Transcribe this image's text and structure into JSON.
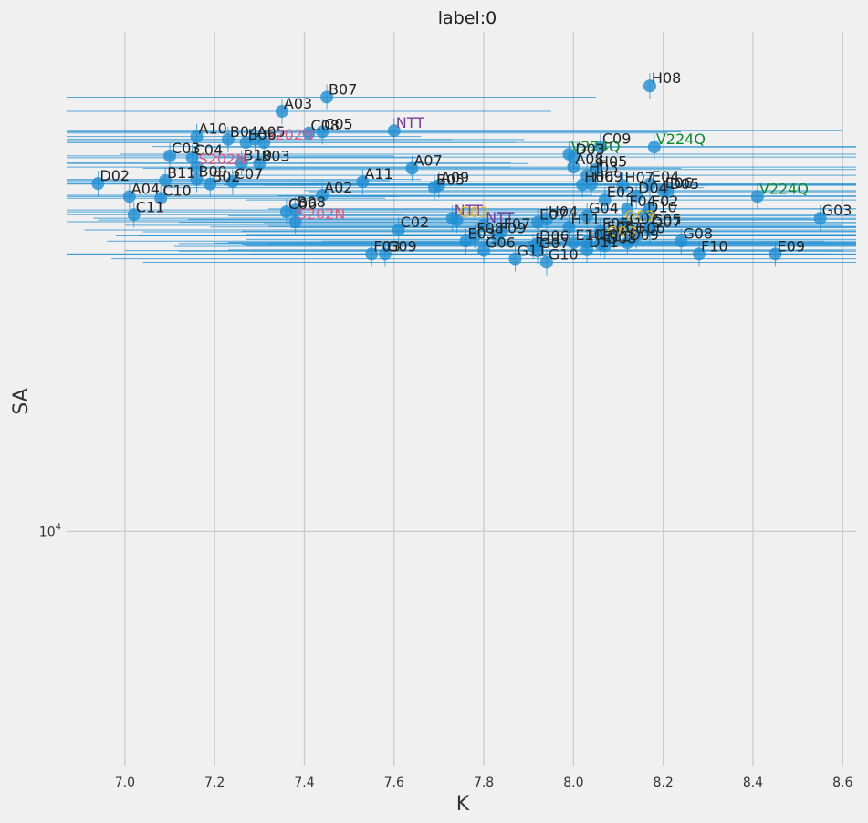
{
  "chart_data": {
    "type": "scatter",
    "title": "label:0",
    "xlabel": "K",
    "ylabel": "SA",
    "xlim": [
      6.87,
      8.63
    ],
    "ylim_log10": [
      3.6,
      4.85
    ],
    "y_scale": "log",
    "xticks": [
      7.0,
      7.2,
      7.4,
      7.6,
      7.8,
      8.0,
      8.2,
      8.4,
      8.6
    ],
    "xtick_labels": [
      "7.0",
      "7.2",
      "7.4",
      "7.6",
      "7.8",
      "8.0",
      "8.2",
      "8.4",
      "8.6"
    ],
    "yticks_log10": [
      4.0
    ],
    "ytick_labels": [
      "10^4"
    ],
    "grid": true,
    "colors": {
      "marker": "#1f8fd3",
      "errorbar": "#1f8fd3",
      "label_default": "#222222",
      "NTT": "#7d3c98",
      "S202N": "#e75480",
      "V224Q": "#0a8a2a",
      "G03_highlight": "#e6b422"
    },
    "points": [
      {
        "label": "H08",
        "x": 8.17,
        "log10y": 4.758,
        "xerr": 0.0,
        "color": "label_default"
      },
      {
        "label": "B07",
        "x": 7.45,
        "log10y": 4.739,
        "xerr": 0.6,
        "color": "label_default"
      },
      {
        "label": "A03",
        "x": 7.35,
        "log10y": 4.715,
        "xerr": 0.6,
        "color": "label_default"
      },
      {
        "label": "NTT",
        "x": 7.6,
        "log10y": 4.682,
        "xerr": 1.0,
        "color": "NTT"
      },
      {
        "label": "C05",
        "x": 7.44,
        "log10y": 4.68,
        "xerr": 0.8,
        "color": "label_default"
      },
      {
        "label": "C08",
        "x": 7.41,
        "log10y": 4.678,
        "xerr": 0.8,
        "color": "label_default"
      },
      {
        "label": "A10",
        "x": 7.16,
        "log10y": 4.672,
        "xerr": 0.5,
        "color": "label_default"
      },
      {
        "label": "B04",
        "x": 7.23,
        "log10y": 4.667,
        "xerr": 0.5,
        "color": "label_default"
      },
      {
        "label": "A05",
        "x": 7.29,
        "log10y": 4.667,
        "xerr": 0.6,
        "color": "label_default"
      },
      {
        "label": "S202N",
        "x": 7.31,
        "log10y": 4.662,
        "xerr": 0.7,
        "color": "S202N"
      },
      {
        "label": "B06",
        "x": 7.27,
        "log10y": 4.662,
        "xerr": 0.6,
        "color": "label_default"
      },
      {
        "label": "C09",
        "x": 8.06,
        "log10y": 4.655,
        "xerr": 1.0,
        "color": "label_default"
      },
      {
        "label": "V224Q",
        "x": 8.18,
        "log10y": 4.654,
        "xerr": 1.0,
        "color": "V224Q"
      },
      {
        "label": "V224Q",
        "x": 7.99,
        "log10y": 4.642,
        "xerr": 1.0,
        "color": "V224Q"
      },
      {
        "label": "D03",
        "x": 8.0,
        "log10y": 4.637,
        "xerr": 0.8,
        "color": "label_default"
      },
      {
        "label": "C03",
        "x": 7.1,
        "log10y": 4.639,
        "xerr": 0.5,
        "color": "label_default"
      },
      {
        "label": "C04",
        "x": 7.15,
        "log10y": 4.636,
        "xerr": 0.5,
        "color": "label_default"
      },
      {
        "label": "B10",
        "x": 7.26,
        "log10y": 4.627,
        "xerr": 0.6,
        "color": "label_default"
      },
      {
        "label": "B03",
        "x": 7.3,
        "log10y": 4.626,
        "xerr": 0.6,
        "color": "label_default"
      },
      {
        "label": "S202N",
        "x": 7.16,
        "log10y": 4.62,
        "xerr": 0.7,
        "color": "S202N"
      },
      {
        "label": "A07",
        "x": 7.64,
        "log10y": 4.618,
        "xerr": 0.6,
        "color": "label_default"
      },
      {
        "label": "A08",
        "x": 8.0,
        "log10y": 4.62,
        "xerr": 0.9,
        "color": "label_default"
      },
      {
        "label": "H05",
        "x": 8.05,
        "log10y": 4.616,
        "xerr": 0.8,
        "color": "label_default"
      },
      {
        "label": "H03",
        "x": 8.03,
        "log10y": 4.606,
        "xerr": 0.8,
        "color": "label_default"
      },
      {
        "label": "B09",
        "x": 7.16,
        "log10y": 4.599,
        "xerr": 0.5,
        "color": "label_default"
      },
      {
        "label": "B11",
        "x": 7.09,
        "log10y": 4.597,
        "xerr": 0.5,
        "color": "label_default"
      },
      {
        "label": "C07",
        "x": 7.24,
        "log10y": 4.595,
        "xerr": 0.5,
        "color": "label_default"
      },
      {
        "label": "A11",
        "x": 7.53,
        "log10y": 4.595,
        "xerr": 0.6,
        "color": "label_default"
      },
      {
        "label": "D02",
        "x": 6.94,
        "log10y": 4.592,
        "xerr": 0.6,
        "color": "label_default"
      },
      {
        "label": "B02",
        "x": 7.19,
        "log10y": 4.591,
        "xerr": 0.5,
        "color": "label_default"
      },
      {
        "label": "A09",
        "x": 7.7,
        "log10y": 4.589,
        "xerr": 0.6,
        "color": "label_default"
      },
      {
        "label": "H06",
        "x": 8.02,
        "log10y": 4.59,
        "xerr": 0.8,
        "color": "label_default"
      },
      {
        "label": "H09",
        "x": 8.04,
        "log10y": 4.591,
        "xerr": 0.8,
        "color": "label_default"
      },
      {
        "label": "H07",
        "x": 8.11,
        "log10y": 4.589,
        "xerr": 0.8,
        "color": "label_default"
      },
      {
        "label": "E04",
        "x": 8.17,
        "log10y": 4.591,
        "xerr": 0.8,
        "color": "label_default"
      },
      {
        "label": "B05",
        "x": 7.69,
        "log10y": 4.585,
        "xerr": 0.6,
        "color": "label_default"
      },
      {
        "label": "E06",
        "x": 8.2,
        "log10y": 4.58,
        "xerr": 0.8,
        "color": "label_default"
      },
      {
        "label": "D05",
        "x": 8.21,
        "log10y": 4.578,
        "xerr": 0.8,
        "color": "label_default"
      },
      {
        "label": "A02",
        "x": 7.44,
        "log10y": 4.572,
        "xerr": 0.6,
        "color": "label_default"
      },
      {
        "label": "A04",
        "x": 7.01,
        "log10y": 4.57,
        "xerr": 0.6,
        "color": "label_default"
      },
      {
        "label": "C10",
        "x": 7.08,
        "log10y": 4.567,
        "xerr": 0.5,
        "color": "label_default"
      },
      {
        "label": "D04",
        "x": 8.14,
        "log10y": 4.571,
        "xerr": 0.8,
        "color": "label_default"
      },
      {
        "label": "V224Q",
        "x": 8.41,
        "log10y": 4.57,
        "xerr": 1.0,
        "color": "V224Q"
      },
      {
        "label": "E02",
        "x": 8.07,
        "log10y": 4.564,
        "xerr": 0.8,
        "color": "label_default"
      },
      {
        "label": "F04",
        "x": 8.12,
        "log10y": 4.549,
        "xerr": 0.8,
        "color": "label_default"
      },
      {
        "label": "F02",
        "x": 8.17,
        "log10y": 4.549,
        "xerr": 0.8,
        "color": "label_default"
      },
      {
        "label": "B08",
        "x": 7.38,
        "log10y": 4.547,
        "xerr": 0.7,
        "color": "label_default"
      },
      {
        "label": "C06",
        "x": 7.36,
        "log10y": 4.544,
        "xerr": 0.7,
        "color": "label_default"
      },
      {
        "label": "D10",
        "x": 8.16,
        "log10y": 4.539,
        "xerr": 0.8,
        "color": "label_default"
      },
      {
        "label": "C11",
        "x": 7.02,
        "log10y": 4.539,
        "xerr": 0.6,
        "color": "label_default"
      },
      {
        "label": "G04",
        "x": 8.03,
        "log10y": 4.537,
        "xerr": 0.8,
        "color": "label_default"
      },
      {
        "label": "NTT",
        "x": 7.73,
        "log10y": 4.533,
        "xerr": 0.8,
        "color": "NTT"
      },
      {
        "label": "G03",
        "x": 7.74,
        "log10y": 4.53,
        "xerr": 0.8,
        "color": "G03_highlight"
      },
      {
        "label": "H04",
        "x": 7.94,
        "log10y": 4.531,
        "xerr": 0.8,
        "color": "label_default"
      },
      {
        "label": "G03",
        "x": 8.55,
        "log10y": 4.533,
        "xerr": 0.9,
        "color": "label_default"
      },
      {
        "label": "S202N",
        "x": 7.38,
        "log10y": 4.527,
        "xerr": 0.7,
        "color": "S202N"
      },
      {
        "label": "E07",
        "x": 7.92,
        "log10y": 4.526,
        "xerr": 0.8,
        "color": "label_default"
      },
      {
        "label": "G03",
        "x": 8.11,
        "log10y": 4.524,
        "xerr": 0.8,
        "color": "G03_highlight"
      },
      {
        "label": "NTT",
        "x": 7.8,
        "log10y": 4.521,
        "xerr": 0.8,
        "color": "NTT"
      },
      {
        "label": "G02",
        "x": 8.12,
        "log10y": 4.519,
        "xerr": 0.8,
        "color": "label_default"
      },
      {
        "label": "G05",
        "x": 8.17,
        "log10y": 4.517,
        "xerr": 0.8,
        "color": "label_default"
      },
      {
        "label": "H11",
        "x": 7.99,
        "log10y": 4.518,
        "xerr": 0.8,
        "color": "label_default"
      },
      {
        "label": "C02",
        "x": 7.61,
        "log10y": 4.513,
        "xerr": 0.7,
        "color": "label_default"
      },
      {
        "label": "F05",
        "x": 8.06,
        "log10y": 4.511,
        "xerr": 0.8,
        "color": "label_default"
      },
      {
        "label": "D07",
        "x": 8.17,
        "log10y": 4.513,
        "xerr": 0.8,
        "color": "label_default"
      },
      {
        "label": "F07",
        "x": 7.84,
        "log10y": 4.51,
        "xerr": 0.8,
        "color": "label_default"
      },
      {
        "label": "E05",
        "x": 8.07,
        "log10y": 4.505,
        "xerr": 0.8,
        "color": "label_default"
      },
      {
        "label": "F06",
        "x": 8.14,
        "log10y": 4.503,
        "xerr": 0.8,
        "color": "label_default"
      },
      {
        "label": "C06",
        "x": 8.09,
        "log10y": 4.503,
        "xerr": 0.8,
        "color": "label_default"
      },
      {
        "label": "F08",
        "x": 7.78,
        "log10y": 4.503,
        "xerr": 0.8,
        "color": "label_default"
      },
      {
        "label": "F09",
        "x": 7.83,
        "log10y": 4.503,
        "xerr": 0.8,
        "color": "label_default"
      },
      {
        "label": "G03",
        "x": 8.07,
        "log10y": 4.497,
        "xerr": 0.8,
        "color": "G03_highlight"
      },
      {
        "label": "G08",
        "x": 8.24,
        "log10y": 4.494,
        "xerr": 0.8,
        "color": "label_default"
      },
      {
        "label": "E03",
        "x": 7.76,
        "log10y": 4.494,
        "xerr": 0.8,
        "color": "label_default"
      },
      {
        "label": "H10",
        "x": 8.03,
        "log10y": 4.492,
        "xerr": 0.8,
        "color": "label_default"
      },
      {
        "label": "E10",
        "x": 8.0,
        "log10y": 4.491,
        "xerr": 0.8,
        "color": "label_default"
      },
      {
        "label": "D06",
        "x": 7.92,
        "log10y": 4.49,
        "xerr": 0.8,
        "color": "label_default"
      },
      {
        "label": "D09",
        "x": 8.12,
        "log10y": 4.491,
        "xerr": 0.8,
        "color": "label_default"
      },
      {
        "label": "E11",
        "x": 8.06,
        "log10y": 4.489,
        "xerr": 0.8,
        "color": "label_default"
      },
      {
        "label": "D08",
        "x": 8.07,
        "log10y": 4.486,
        "xerr": 0.8,
        "color": "label_default"
      },
      {
        "label": "F11",
        "x": 7.91,
        "log10y": 4.485,
        "xerr": 0.8,
        "color": "label_default"
      },
      {
        "label": "D11",
        "x": 8.03,
        "log10y": 4.479,
        "xerr": 0.8,
        "color": "label_default"
      },
      {
        "label": "G06",
        "x": 7.8,
        "log10y": 4.478,
        "xerr": 0.8,
        "color": "label_default"
      },
      {
        "label": "G07",
        "x": 7.92,
        "log10y": 4.477,
        "xerr": 0.8,
        "color": "label_default"
      },
      {
        "label": "F03",
        "x": 7.55,
        "log10y": 4.472,
        "xerr": 1.0,
        "color": "label_default"
      },
      {
        "label": "G09",
        "x": 7.58,
        "log10y": 4.472,
        "xerr": 1.0,
        "color": "label_default"
      },
      {
        "label": "F10",
        "x": 8.28,
        "log10y": 4.472,
        "xerr": 1.0,
        "color": "label_default"
      },
      {
        "label": "E09",
        "x": 8.45,
        "log10y": 4.472,
        "xerr": 1.0,
        "color": "label_default"
      },
      {
        "label": "G11",
        "x": 7.87,
        "log10y": 4.464,
        "xerr": 0.9,
        "color": "label_default"
      },
      {
        "label": "G10",
        "x": 7.94,
        "log10y": 4.458,
        "xerr": 0.9,
        "color": "label_default"
      }
    ]
  }
}
